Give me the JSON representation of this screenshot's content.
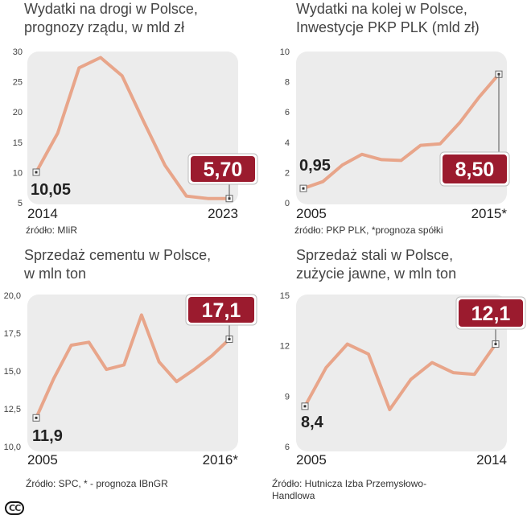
{
  "colors": {
    "line": "#e8a58a",
    "plot_bg": "#ececec",
    "callout": "#9b1b2e",
    "axis_text": "#444444"
  },
  "chart_data": [
    {
      "type": "line",
      "title": "Wydatki na drogi w Polsce,\nprognozy rządu, w mld zł",
      "x": [
        2014,
        2015,
        2016,
        2017,
        2018,
        2019,
        2020,
        2021,
        2022,
        2023
      ],
      "values": [
        10.05,
        16.5,
        27.3,
        29,
        26,
        18.5,
        11.2,
        6.1,
        5.7,
        5.7
      ],
      "ylim": [
        5,
        30
      ],
      "yticks": [
        "30",
        "25",
        "20",
        "15",
        "10",
        "5"
      ],
      "x_start_label": "2014",
      "x_end_label": "2023",
      "first_label": "10,05",
      "last_label": "5,70",
      "source": "źródło: MIiR"
    },
    {
      "type": "line",
      "title": "Wydatki na kolej w Polsce,\nInwestycje PKP PLK (mld zł)",
      "x": [
        2005,
        2006,
        2007,
        2008,
        2009,
        2010,
        2011,
        2012,
        2013,
        2014,
        2015
      ],
      "values": [
        0.95,
        1.4,
        2.5,
        3.2,
        2.85,
        2.8,
        3.8,
        3.9,
        5.3,
        7.0,
        8.5
      ],
      "ylim": [
        0,
        10
      ],
      "yticks": [
        "10",
        "8",
        "6",
        "4",
        "2",
        "0"
      ],
      "x_start_label": "2005",
      "x_end_label": "2015*",
      "first_label": "0,95",
      "last_label": "8,50",
      "source": "źródło: PKP PLK, *prognoza spółki"
    },
    {
      "type": "line",
      "title": "Sprzedaż cementu w Polsce,\nw mln ton",
      "x": [
        2005,
        2006,
        2007,
        2008,
        2009,
        2010,
        2011,
        2012,
        2013,
        2014,
        2015,
        2016
      ],
      "values": [
        11.9,
        14.5,
        16.7,
        16.9,
        15.1,
        15.4,
        18.7,
        15.6,
        14.3,
        15.1,
        16.0,
        17.1
      ],
      "ylim": [
        10,
        20
      ],
      "yticks": [
        "20,0",
        "17,5",
        "15,0",
        "12,5",
        "10,0"
      ],
      "x_start_label": "2005",
      "x_end_label": "2016*",
      "first_label": "11,9",
      "last_label": "17,1",
      "source": "Źródło: SPC, * - prognoza IBnGR"
    },
    {
      "type": "line",
      "title": "Sprzedaż stali w Polsce,\nzużycie jawne, w mln ton",
      "x": [
        2005,
        2006,
        2007,
        2008,
        2009,
        2010,
        2011,
        2012,
        2013,
        2014
      ],
      "values": [
        8.4,
        10.7,
        12.1,
        11.5,
        8.2,
        10.0,
        11.0,
        10.4,
        10.3,
        12.1
      ],
      "ylim": [
        6,
        15
      ],
      "yticks": [
        "15",
        "12",
        "9",
        "6"
      ],
      "x_start_label": "2005",
      "x_end_label": "2014",
      "first_label": "8,4",
      "last_label": "12,1",
      "source": "Źródło: Hutnicza Izba Przemysłowo-\nHandlowa"
    }
  ],
  "license_mark": "CC"
}
